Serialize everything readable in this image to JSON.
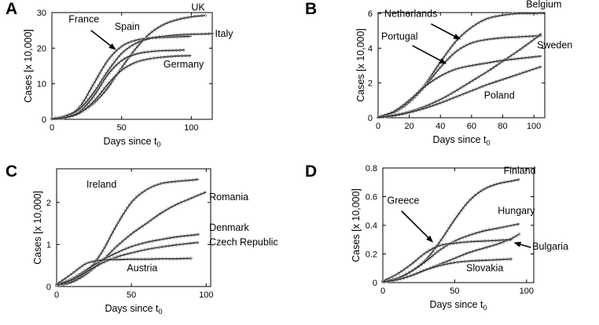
{
  "style": {
    "background": "#ffffff",
    "line_color": "#1a1a1a",
    "marker_color": "#9a9a9a",
    "axis_color": "#000000",
    "annotation_color": "#000000"
  },
  "chart_data": [
    {
      "letter": "A",
      "type": "line",
      "title": "",
      "xlabel": "Days since t",
      "xlabel_sub": "0",
      "ylabel": "Cases [x 10,000]",
      "xlim": [
        0,
        115
      ],
      "ylim": [
        0,
        30
      ],
      "xticks": [
        0,
        50,
        100
      ],
      "yticks": [
        0,
        10,
        20,
        30
      ],
      "grid": false,
      "series": [
        {
          "name": "UK",
          "x": [
            0,
            10,
            20,
            30,
            40,
            50,
            60,
            70,
            80,
            90,
            100,
            110
          ],
          "y": [
            0.2,
            0.8,
            2.0,
            4.5,
            8.8,
            14.5,
            19.8,
            24.0,
            26.6,
            28.0,
            28.8,
            29.2
          ]
        },
        {
          "name": "Spain",
          "x": [
            0,
            10,
            20,
            30,
            40,
            50,
            60,
            70,
            80,
            90,
            100
          ],
          "y": [
            0.1,
            0.8,
            3.5,
            10.0,
            16.5,
            20.5,
            22.2,
            22.8,
            23.0,
            23.2,
            23.3
          ]
        },
        {
          "name": "Italy",
          "x": [
            0,
            10,
            20,
            30,
            40,
            50,
            60,
            70,
            80,
            90,
            100,
            110,
            115
          ],
          "y": [
            0.2,
            1.0,
            3.0,
            7.5,
            13.5,
            18.5,
            21.3,
            22.7,
            23.3,
            23.7,
            23.9,
            24.0,
            24.1
          ]
        },
        {
          "name": "France",
          "x": [
            0,
            10,
            20,
            30,
            40,
            50,
            60,
            70,
            80,
            90,
            95
          ],
          "y": [
            0.1,
            0.6,
            2.2,
            6.5,
            12.5,
            16.5,
            18.3,
            19.0,
            19.3,
            19.4,
            19.5
          ]
        },
        {
          "name": "Germany",
          "x": [
            0,
            10,
            20,
            30,
            40,
            50,
            60,
            70,
            80,
            90,
            100
          ],
          "y": [
            0.1,
            0.5,
            1.8,
            5.0,
            9.8,
            13.8,
            16.0,
            17.0,
            17.5,
            17.8,
            17.9
          ]
        }
      ],
      "annotations": [
        {
          "text": "UK",
          "x": 100,
          "y": 30.6,
          "anchor": "start"
        },
        {
          "text": "France",
          "x": 12,
          "y": 27.2,
          "anchor": "start",
          "arrow": [
            28,
            25,
            46,
            19.5
          ]
        },
        {
          "text": "Spain",
          "x": 45,
          "y": 25.2,
          "anchor": "start"
        },
        {
          "text": "Italy",
          "x": 117,
          "y": 23.2,
          "anchor": "start"
        },
        {
          "text": "Germany",
          "x": 80,
          "y": 14.6,
          "anchor": "start"
        }
      ]
    },
    {
      "letter": "B",
      "type": "line",
      "title": "",
      "xlabel": "Days since t",
      "xlabel_sub": "0",
      "ylabel": "Cases [x 10,000]",
      "xlim": [
        0,
        107
      ],
      "ylim": [
        0,
        6.05
      ],
      "xticks": [
        0,
        20,
        40,
        60,
        80,
        100
      ],
      "yticks": [
        0,
        2,
        4,
        6
      ],
      "grid": false,
      "series": [
        {
          "name": "Belgium",
          "x": [
            0,
            10,
            20,
            30,
            40,
            50,
            60,
            70,
            80,
            90,
            100,
            105
          ],
          "y": [
            0.05,
            0.3,
            0.9,
            1.9,
            3.2,
            4.4,
            5.2,
            5.7,
            5.9,
            6.0,
            6.0,
            6.02
          ]
        },
        {
          "name": "Netherlands",
          "x": [
            0,
            10,
            20,
            30,
            40,
            50,
            60,
            70,
            80,
            90,
            100,
            105
          ],
          "y": [
            0.05,
            0.3,
            0.9,
            1.8,
            2.9,
            3.8,
            4.3,
            4.5,
            4.6,
            4.65,
            4.7,
            4.72
          ]
        },
        {
          "name": "Sweden",
          "x": [
            0,
            10,
            20,
            30,
            40,
            50,
            60,
            70,
            80,
            90,
            100,
            105
          ],
          "y": [
            0.02,
            0.15,
            0.35,
            0.65,
            1.05,
            1.55,
            2.1,
            2.65,
            3.25,
            3.85,
            4.5,
            4.85
          ]
        },
        {
          "name": "Portugal",
          "x": [
            0,
            10,
            20,
            30,
            40,
            50,
            60,
            70,
            80,
            90,
            100,
            105
          ],
          "y": [
            0.05,
            0.35,
            1.0,
            1.8,
            2.4,
            2.8,
            3.0,
            3.15,
            3.3,
            3.4,
            3.5,
            3.55
          ]
        },
        {
          "name": "Poland",
          "x": [
            0,
            10,
            20,
            30,
            40,
            50,
            60,
            70,
            80,
            90,
            100,
            105
          ],
          "y": [
            0.02,
            0.12,
            0.3,
            0.55,
            0.85,
            1.2,
            1.55,
            1.9,
            2.2,
            2.5,
            2.8,
            2.95
          ]
        }
      ],
      "annotations": [
        {
          "text": "Netherlands",
          "x": 4,
          "y": 5.8,
          "anchor": "start",
          "arrow": [
            34,
            5.4,
            53,
            4.5
          ]
        },
        {
          "text": "Belgium",
          "x": 95,
          "y": 6.35,
          "anchor": "start"
        },
        {
          "text": "Portugal",
          "x": 2,
          "y": 4.5,
          "anchor": "start",
          "arrow": [
            22,
            4.15,
            44,
            3.1
          ]
        },
        {
          "text": "Sweden",
          "x": 102,
          "y": 4.0,
          "anchor": "start"
        },
        {
          "text": "Poland",
          "x": 68,
          "y": 1.1,
          "anchor": "start"
        }
      ]
    },
    {
      "letter": "C",
      "type": "line",
      "title": "",
      "xlabel": "Days since t",
      "xlabel_sub": "0",
      "ylabel": "Cases [x 10,000]",
      "xlim": [
        0,
        103
      ],
      "ylim": [
        0,
        2.8
      ],
      "xticks": [
        0,
        50,
        100
      ],
      "yticks": [
        0,
        1,
        2
      ],
      "grid": false,
      "series": [
        {
          "name": "Ireland",
          "x": [
            0,
            10,
            20,
            30,
            40,
            50,
            60,
            70,
            80,
            90,
            95
          ],
          "y": [
            0.03,
            0.12,
            0.35,
            0.8,
            1.45,
            2.0,
            2.3,
            2.45,
            2.5,
            2.53,
            2.55
          ]
        },
        {
          "name": "Romania",
          "x": [
            0,
            10,
            20,
            30,
            40,
            50,
            60,
            70,
            80,
            90,
            100
          ],
          "y": [
            0.02,
            0.1,
            0.3,
            0.6,
            0.95,
            1.25,
            1.5,
            1.75,
            1.95,
            2.1,
            2.25
          ]
        },
        {
          "name": "Denmark",
          "x": [
            0,
            10,
            20,
            30,
            40,
            50,
            60,
            70,
            80,
            90,
            95
          ],
          "y": [
            0.05,
            0.18,
            0.4,
            0.62,
            0.8,
            0.95,
            1.05,
            1.12,
            1.18,
            1.22,
            1.24
          ]
        },
        {
          "name": "Czech Republic",
          "x": [
            0,
            10,
            20,
            30,
            40,
            50,
            60,
            70,
            80,
            90,
            95
          ],
          "y": [
            0.04,
            0.15,
            0.35,
            0.55,
            0.7,
            0.8,
            0.88,
            0.94,
            0.99,
            1.03,
            1.05
          ]
        },
        {
          "name": "Austria",
          "x": [
            0,
            10,
            20,
            30,
            40,
            50,
            60,
            70,
            80,
            90
          ],
          "y": [
            0.05,
            0.3,
            0.55,
            0.63,
            0.64,
            0.65,
            0.65,
            0.66,
            0.66,
            0.67
          ]
        }
      ],
      "annotations": [
        {
          "text": "Ireland",
          "x": 20,
          "y": 2.35,
          "anchor": "start"
        },
        {
          "text": "Romania",
          "x": 102,
          "y": 2.05,
          "anchor": "start"
        },
        {
          "text": "Denmark",
          "x": 102,
          "y": 1.33,
          "anchor": "start"
        },
        {
          "text": "Czech Republic",
          "x": 102,
          "y": 0.98,
          "anchor": "start"
        },
        {
          "text": "Austria",
          "x": 47,
          "y": 0.36,
          "anchor": "start"
        }
      ]
    },
    {
      "letter": "D",
      "type": "line",
      "title": "",
      "xlabel": "Days since t",
      "xlabel_sub": "0",
      "ylabel": "Cases [x 10,000]",
      "xlim": [
        0,
        105
      ],
      "ylim": [
        0,
        0.8
      ],
      "xticks": [
        0,
        50,
        100
      ],
      "yticks": [
        0,
        0.2,
        0.4,
        0.6,
        0.8
      ],
      "grid": false,
      "series": [
        {
          "name": "Finland",
          "x": [
            0,
            10,
            20,
            30,
            40,
            50,
            60,
            70,
            80,
            90,
            95
          ],
          "y": [
            0.01,
            0.03,
            0.08,
            0.16,
            0.29,
            0.44,
            0.57,
            0.65,
            0.69,
            0.71,
            0.72
          ]
        },
        {
          "name": "Hungary",
          "x": [
            0,
            10,
            20,
            30,
            40,
            50,
            60,
            70,
            80,
            90,
            95
          ],
          "y": [
            0.01,
            0.03,
            0.08,
            0.15,
            0.23,
            0.29,
            0.33,
            0.36,
            0.38,
            0.4,
            0.41
          ]
        },
        {
          "name": "Bulgaria",
          "x": [
            0,
            10,
            20,
            30,
            40,
            50,
            60,
            70,
            80,
            90,
            95
          ],
          "y": [
            0.005,
            0.02,
            0.05,
            0.09,
            0.13,
            0.17,
            0.21,
            0.24,
            0.27,
            0.31,
            0.34
          ]
        },
        {
          "name": "Greece",
          "x": [
            0,
            10,
            20,
            30,
            40,
            50,
            60,
            70,
            80,
            90
          ],
          "y": [
            0.01,
            0.06,
            0.13,
            0.21,
            0.26,
            0.275,
            0.285,
            0.29,
            0.295,
            0.3
          ]
        },
        {
          "name": "Slovakia",
          "x": [
            0,
            10,
            20,
            30,
            40,
            50,
            60,
            70,
            80,
            90
          ],
          "y": [
            0.005,
            0.02,
            0.05,
            0.09,
            0.12,
            0.14,
            0.15,
            0.155,
            0.16,
            0.165
          ]
        }
      ],
      "annotations": [
        {
          "text": "Finland",
          "x": 84,
          "y": 0.76,
          "anchor": "start"
        },
        {
          "text": "Greece",
          "x": 3,
          "y": 0.55,
          "anchor": "start",
          "arrow": [
            13,
            0.5,
            35,
            0.28
          ]
        },
        {
          "text": "Hungary",
          "x": 80,
          "y": 0.48,
          "anchor": "start"
        },
        {
          "text": "Bulgaria",
          "x": 104,
          "y": 0.23,
          "anchor": "start",
          "arrow": [
            103,
            0.245,
            91,
            0.28
          ]
        },
        {
          "text": "Slovakia",
          "x": 58,
          "y": 0.08,
          "anchor": "start"
        }
      ]
    }
  ]
}
